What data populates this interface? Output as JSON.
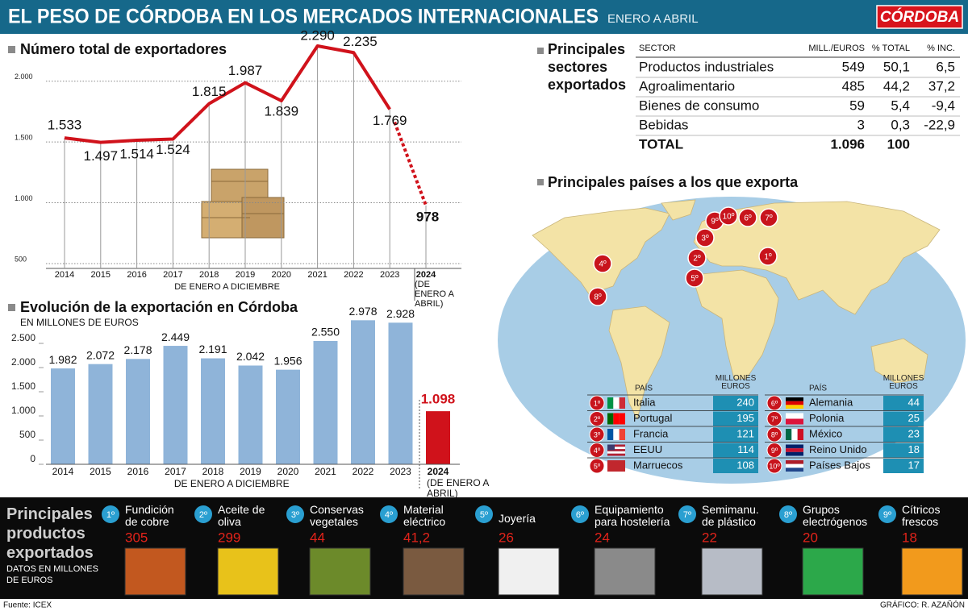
{
  "header": {
    "title": "EL PESO DE CÓRDOBA EN LOS MERCADOS INTERNACIONALES",
    "subtitle": "ENERO A ABRIL",
    "brand": "CÓRDOBA"
  },
  "chart_data": [
    {
      "type": "line",
      "title": "Número total de exportadores",
      "categories": [
        "2014",
        "2015",
        "2016",
        "2017",
        "2018",
        "2019",
        "2020",
        "2021",
        "2022",
        "2023",
        "2024"
      ],
      "values": [
        1533,
        1497,
        1514,
        1524,
        1815,
        1987,
        1839,
        2290,
        2235,
        1769,
        978
      ],
      "value_labels": [
        "1.533",
        "1.497",
        "1.514",
        "1.524",
        "1.815",
        "1.987",
        "1.839",
        "2.290",
        "2.235",
        "1.769",
        "978"
      ],
      "x_label": "DE ENERO A DICIEMBRE",
      "last_category_note": "(DE ENERO A ABRIL)",
      "ylim": [
        460,
        2270
      ],
      "yticks": [
        500,
        {
          "value": 1000,
          "label": "1.000"
        },
        {
          "value": 1500,
          "label": "1.500"
        },
        {
          "value": 2000,
          "label": "2.000"
        }
      ],
      "grid": true,
      "color": "#d0121b",
      "last_segment_dashed": true
    },
    {
      "type": "bar",
      "title": "Evolución de la exportación en Córdoba",
      "subtitle": "EN MILLONES DE EUROS",
      "categories": [
        "2014",
        "2015",
        "2016",
        "2017",
        "2018",
        "2019",
        "2020",
        "2021",
        "2022",
        "2023",
        "2024"
      ],
      "values": [
        1982,
        2072,
        2178,
        2449,
        2191,
        2042,
        1956,
        2550,
        2978,
        2928,
        1098
      ],
      "value_labels": [
        "1.982",
        "2.072",
        "2.178",
        "2.449",
        "2.191",
        "2.042",
        "1.956",
        "2.550",
        "2.978",
        "2.928",
        "1.098"
      ],
      "x_label": "DE ENERO A DICIEMBRE",
      "last_category_note": "(DE ENERO A ABRIL)",
      "ylim": [
        0,
        3000
      ],
      "yticks": [
        0,
        500,
        {
          "value": 1000,
          "label": "1.000"
        },
        {
          "value": 1500,
          "label": "1.500"
        },
        {
          "value": 2000,
          "label": "2.000"
        },
        {
          "value": 2500,
          "label": "2.500"
        }
      ],
      "colors": [
        "#8fb4d9",
        "#8fb4d9",
        "#8fb4d9",
        "#8fb4d9",
        "#8fb4d9",
        "#8fb4d9",
        "#8fb4d9",
        "#8fb4d9",
        "#8fb4d9",
        "#8fb4d9",
        "#d0121b"
      ]
    }
  ],
  "sectors": {
    "title": "Principales sectores exportados",
    "columns": [
      "SECTOR",
      "MILL./EUROS",
      "% TOTAL",
      "% INC."
    ],
    "rows": [
      [
        "Productos industriales",
        549,
        {
          "value": 50.1,
          "label": "50,1"
        },
        {
          "value": 6.5,
          "label": "6,5"
        }
      ],
      [
        "Agroalimentario",
        485,
        {
          "value": 44.2,
          "label": "44,2"
        },
        {
          "value": 37.2,
          "label": "37,2"
        }
      ],
      [
        "Bienes de consumo",
        59,
        {
          "value": 5.4,
          "label": "5,4"
        },
        {
          "value": -9.4,
          "label": "-9,4"
        }
      ],
      [
        "Bebidas",
        3,
        {
          "value": 0.3,
          "label": "0,3"
        },
        {
          "value": -22.9,
          "label": "-22,9"
        }
      ],
      [
        "TOTAL",
        {
          "value": 1096,
          "label": "1.096"
        },
        100
      ]
    ]
  },
  "countries": {
    "title": "Principales países a los que exporta",
    "country_header": "PAÍS",
    "value_header": "MILLONES EUROS",
    "items": [
      {
        "rank": "1º",
        "name": "Italia",
        "value": 240
      },
      {
        "rank": "2º",
        "name": "Portugal",
        "value": 195
      },
      {
        "rank": "3º",
        "name": "Francia",
        "value": 121
      },
      {
        "rank": "4º",
        "name": "EEUU",
        "value": 114
      },
      {
        "rank": "5º",
        "name": "Marruecos",
        "value": 108
      },
      {
        "rank": "6º",
        "name": "Alemania",
        "value": 44
      },
      {
        "rank": "7º",
        "name": "Polonia",
        "value": 25
      },
      {
        "rank": "8º",
        "name": "México",
        "value": 23
      },
      {
        "rank": "9º",
        "name": "Reino Unido",
        "value": 18
      },
      {
        "rank": "10º",
        "name": "Países Bajos",
        "value": 17
      }
    ]
  },
  "products": {
    "title": "Principales productos exportados",
    "subtitle": "DATOS EN MILLONES DE EUROS",
    "items": [
      {
        "rank": "1º",
        "name": "Fundición de cobre",
        "value": 305
      },
      {
        "rank": "2º",
        "name": "Aceite de oliva",
        "value": 299
      },
      {
        "rank": "3º",
        "name": "Conservas vegetales",
        "value": 44
      },
      {
        "rank": "4º",
        "name": "Material eléctrico",
        "value": 41.2,
        "value_label": "41,2"
      },
      {
        "rank": "5º",
        "name": "Joyería",
        "value": 26
      },
      {
        "rank": "6º",
        "name": "Equipamiento para hostelería",
        "value": 24
      },
      {
        "rank": "7º",
        "name": "Semimanu. de plástico",
        "value": 22
      },
      {
        "rank": "8º",
        "name": "Grupos electrógenos",
        "value": 20
      },
      {
        "rank": "9º",
        "name": "Cítricos frescos",
        "value": 18
      }
    ]
  },
  "footer": {
    "source": "Fuente: ICEX",
    "credit": "GRÁFICO: R. AZAÑÓN"
  }
}
